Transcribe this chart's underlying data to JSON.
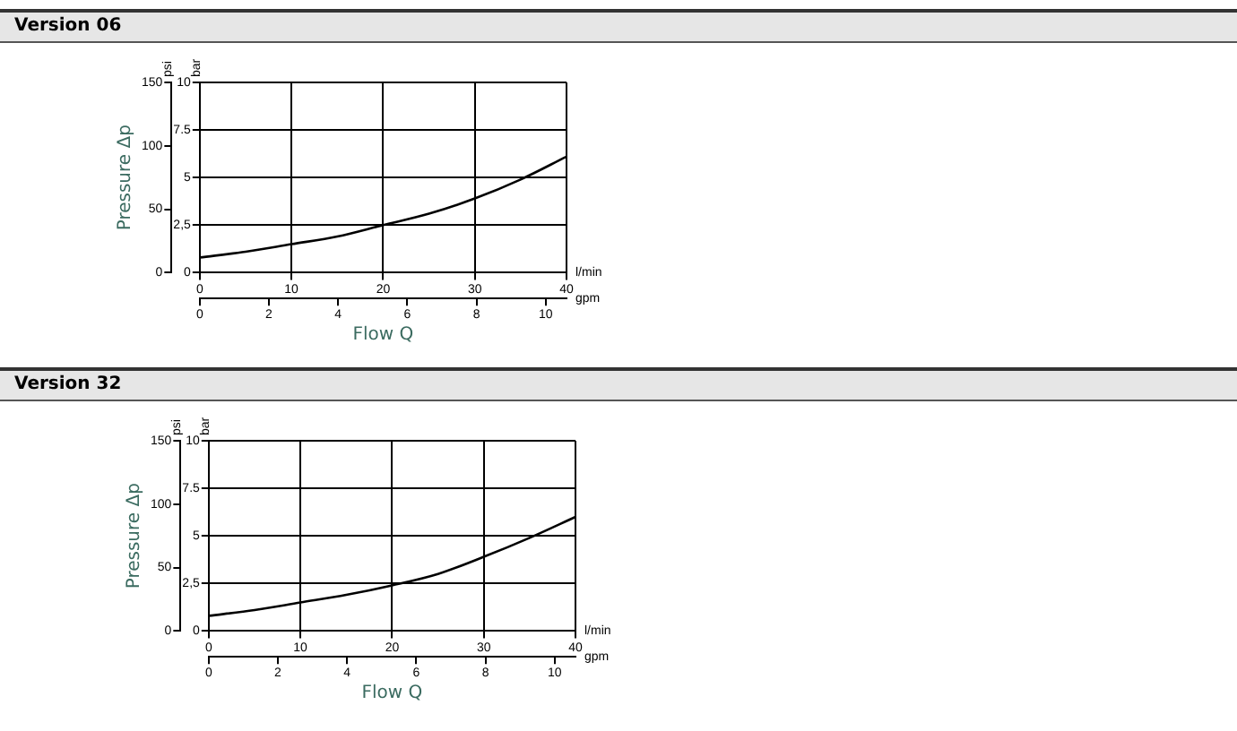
{
  "chart_data": [
    {
      "type": "line",
      "title": "Version 06",
      "xlabel": "Flow Q",
      "y2label": "Pressure Δp",
      "annotations": [
        "bar",
        "psi",
        "l/min",
        "gpm"
      ],
      "x": [
        0,
        5,
        10,
        15,
        20,
        25,
        30,
        35,
        40
      ],
      "series": [
        {
          "color": "#000000",
          "values": [
            0.8,
            1.1,
            1.5,
            1.9,
            2.5,
            3.1,
            3.9,
            4.9,
            6.1
          ]
        }
      ],
      "xlim": [
        0,
        40
      ],
      "xticks": [
        0,
        10,
        20,
        30,
        40
      ],
      "x2lim": [
        0,
        10.6
      ],
      "x2ticks": [
        0,
        2,
        4,
        6,
        8,
        10
      ],
      "ylim": [
        0,
        10
      ],
      "yticks": [
        0,
        {
          "value": 2.5,
          "label": "2,5"
        },
        5,
        7.5,
        10
      ],
      "y2lim": [
        0,
        150
      ],
      "y2ticks": [
        0,
        50,
        100,
        150
      ],
      "grid": true,
      "marker": "none",
      "line_style": "solid"
    },
    {
      "type": "line",
      "title": "Version 32",
      "xlabel": "Flow Q",
      "y2label": "Pressure Δp",
      "annotations": [
        "bar",
        "psi",
        "l/min",
        "gpm"
      ],
      "x": [
        0,
        5,
        10,
        15,
        20,
        25,
        30,
        35,
        40
      ],
      "series": [
        {
          "color": "#000000",
          "values": [
            0.8,
            1.1,
            1.5,
            1.9,
            2.4,
            3.0,
            3.9,
            4.9,
            6.0
          ]
        }
      ],
      "xlim": [
        0,
        40
      ],
      "xticks": [
        0,
        10,
        20,
        30,
        40
      ],
      "x2lim": [
        0,
        10.6
      ],
      "x2ticks": [
        0,
        2,
        4,
        6,
        8,
        10
      ],
      "ylim": [
        0,
        10
      ],
      "yticks": [
        0,
        {
          "value": 2.5,
          "label": "2,5"
        },
        5,
        7.5,
        10
      ],
      "y2lim": [
        0,
        150
      ],
      "y2ticks": [
        0,
        50,
        100,
        150
      ],
      "grid": true,
      "marker": "none",
      "line_style": "solid"
    }
  ]
}
